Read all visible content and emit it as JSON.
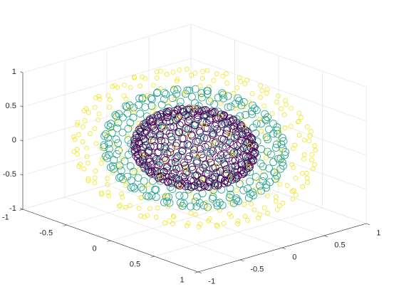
{
  "chart_data": {
    "type": "scatter",
    "title": "",
    "xlabel": "",
    "ylabel": "",
    "zlabel": "",
    "xlim": [
      -1,
      1
    ],
    "ylim": [
      -1,
      1
    ],
    "zlim": [
      -1,
      1
    ],
    "x_ticks": [
      "-1",
      "-0.5",
      "0",
      "0.5",
      "1"
    ],
    "y_ticks": [
      "-1",
      "-0.5",
      "0",
      "0.5",
      "1"
    ],
    "z_ticks": [
      "-1",
      "-0.5",
      "0",
      "0.5",
      "1"
    ],
    "grid": true,
    "box": "partial",
    "view": {
      "azimuth_deg": -37.5,
      "elevation_deg": 30
    },
    "marker": "circle-open",
    "series": [
      {
        "shape": "sphere",
        "radius": 0.5,
        "approx_points": 400,
        "color": "#440154",
        "marker_size": "large"
      },
      {
        "shape": "sphere",
        "radius": 0.75,
        "approx_points": 300,
        "color": "#21A08A",
        "marker_size": "large"
      },
      {
        "shape": "sphere",
        "radius": 1.0,
        "approx_points": 300,
        "color": "#F0E51E",
        "marker_size": "small"
      }
    ]
  }
}
